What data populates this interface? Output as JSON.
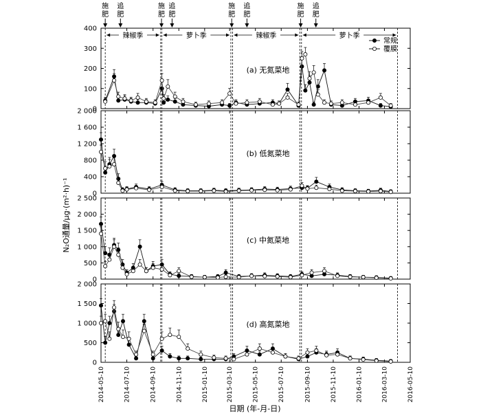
{
  "figure": {
    "ylabel": "N₂O通量/μg·(m²·h)⁻¹",
    "xlabel": "日期 (年-月-日)",
    "legend": [
      "常规",
      "覆膜"
    ],
    "x_ticks": [
      "2014-05-10",
      "2014-07-10",
      "2014-09-10",
      "2014-11-10",
      "2015-01-10",
      "2015-03-10",
      "2015-05-10",
      "2015-07-10",
      "2015-09-10",
      "2015-11-10",
      "2016-01-10",
      "2016-03-10",
      "2016-05-10"
    ],
    "events": [
      {
        "label": [
          "施",
          "肥"
        ],
        "date": "2014-05-20"
      },
      {
        "label": [
          "追",
          "肥"
        ],
        "date": "2014-06-25"
      },
      {
        "label": [
          "施",
          "肥"
        ],
        "date": "2014-09-30"
      },
      {
        "label": [
          "追",
          "肥"
        ],
        "date": "2014-10-25"
      },
      {
        "label": [
          "施",
          "肥"
        ],
        "date": "2015-03-15"
      },
      {
        "label": [
          "追",
          "肥"
        ],
        "date": "2015-04-20"
      },
      {
        "label": [
          "施",
          "肥"
        ],
        "date": "2015-08-25"
      },
      {
        "label": [
          "追",
          "肥"
        ],
        "date": "2015-09-30"
      }
    ],
    "seasons": [
      {
        "label": "辣椒季",
        "start": "2014-05-20",
        "end": "2014-09-28"
      },
      {
        "label": "萝卜季",
        "start": "2014-10-01",
        "end": "2015-03-13"
      },
      {
        "label": "辣椒季",
        "start": "2015-03-17",
        "end": "2015-08-23"
      },
      {
        "label": "萝卜季",
        "start": "2015-08-27",
        "end": "2016-04-10"
      }
    ],
    "dashed_lines": [
      "2014-05-20",
      "2014-09-28",
      "2014-10-01",
      "2015-03-13",
      "2015-03-17",
      "2015-08-23",
      "2015-08-27",
      "2016-04-10"
    ]
  },
  "chart_data": [
    {
      "type": "line",
      "title": "(a) 无氮菜地",
      "ylim": [
        0,
        400
      ],
      "yticks": [
        0,
        100,
        200,
        300,
        400
      ],
      "ytick_labels": [
        "0",
        "100",
        "200",
        "300",
        "400"
      ],
      "series": [
        {
          "name": "常规",
          "x": [
            "2014-05-20",
            "2014-06-10",
            "2014-06-20",
            "2014-07-05",
            "2014-07-20",
            "2014-08-05",
            "2014-08-25",
            "2014-09-15",
            "2014-10-01",
            "2014-10-05",
            "2014-10-15",
            "2014-11-01",
            "2014-11-20",
            "2014-12-20",
            "2015-01-20",
            "2015-02-20",
            "2015-03-10",
            "2015-03-25",
            "2015-04-20",
            "2015-05-20",
            "2015-06-20",
            "2015-07-05",
            "2015-07-25",
            "2015-08-20",
            "2015-08-28",
            "2015-09-05",
            "2015-09-15",
            "2015-09-25",
            "2015-10-05",
            "2015-10-20",
            "2015-11-05",
            "2015-12-01",
            "2016-01-01",
            "2016-02-01",
            "2016-03-01",
            "2016-03-25"
          ],
          "y": [
            40,
            160,
            40,
            45,
            35,
            30,
            30,
            25,
            100,
            30,
            45,
            35,
            20,
            15,
            12,
            20,
            15,
            30,
            20,
            25,
            30,
            25,
            95,
            15,
            210,
            90,
            130,
            20,
            110,
            190,
            20,
            15,
            35,
            40,
            15,
            10
          ]
        },
        {
          "name": "覆膜",
          "x": [
            "2014-05-20",
            "2014-06-10",
            "2014-06-20",
            "2014-07-05",
            "2014-07-20",
            "2014-08-05",
            "2014-08-25",
            "2014-09-15",
            "2014-10-01",
            "2014-10-05",
            "2014-10-15",
            "2014-11-01",
            "2014-11-20",
            "2014-12-20",
            "2015-01-20",
            "2015-02-20",
            "2015-03-10",
            "2015-03-25",
            "2015-04-20",
            "2015-05-20",
            "2015-06-20",
            "2015-07-05",
            "2015-07-25",
            "2015-08-20",
            "2015-08-28",
            "2015-09-05",
            "2015-09-15",
            "2015-09-25",
            "2015-10-05",
            "2015-10-20",
            "2015-11-05",
            "2015-12-01",
            "2016-01-01",
            "2016-02-01",
            "2016-03-01",
            "2016-03-25"
          ],
          "y": [
            35,
            140,
            60,
            50,
            40,
            55,
            35,
            30,
            140,
            50,
            110,
            60,
            35,
            20,
            25,
            30,
            75,
            25,
            30,
            35,
            20,
            25,
            55,
            20,
            250,
            270,
            150,
            180,
            70,
            30,
            25,
            30,
            20,
            30,
            55,
            15
          ]
        }
      ]
    },
    {
      "type": "line",
      "title": "(b) 低氮菜地",
      "ylim": [
        0,
        2000
      ],
      "yticks": [
        0,
        400,
        800,
        1200,
        1600,
        2000
      ],
      "ytick_labels": [
        "0",
        "400",
        "800",
        "1 200",
        "1 600",
        "2 000"
      ],
      "series": [
        {
          "name": "常规",
          "x": [
            "2014-05-10",
            "2014-05-20",
            "2014-05-30",
            "2014-06-10",
            "2014-06-20",
            "2014-06-30",
            "2014-07-10",
            "2014-08-01",
            "2014-09-01",
            "2014-10-01",
            "2014-11-01",
            "2014-12-01",
            "2015-01-01",
            "2015-02-01",
            "2015-03-01",
            "2015-04-01",
            "2015-05-01",
            "2015-06-01",
            "2015-07-01",
            "2015-08-01",
            "2015-08-28",
            "2015-09-10",
            "2015-10-01",
            "2015-11-01",
            "2015-12-01",
            "2016-01-01",
            "2016-02-01",
            "2016-03-01",
            "2016-03-25"
          ],
          "y": [
            1300,
            500,
            700,
            900,
            350,
            80,
            100,
            150,
            100,
            200,
            80,
            60,
            60,
            70,
            60,
            70,
            80,
            100,
            90,
            110,
            130,
            120,
            280,
            150,
            80,
            60,
            50,
            70,
            40
          ]
        },
        {
          "name": "覆膜",
          "x": [
            "2014-05-10",
            "2014-05-20",
            "2014-05-30",
            "2014-06-10",
            "2014-06-20",
            "2014-06-30",
            "2014-07-10",
            "2014-08-01",
            "2014-09-01",
            "2014-10-01",
            "2014-11-01",
            "2014-12-01",
            "2015-01-01",
            "2015-02-01",
            "2015-03-01",
            "2015-04-01",
            "2015-05-01",
            "2015-06-01",
            "2015-07-01",
            "2015-08-01",
            "2015-08-28",
            "2015-09-10",
            "2015-10-01",
            "2015-11-01",
            "2015-12-01",
            "2016-01-01",
            "2016-02-01",
            "2016-03-01",
            "2016-03-25"
          ],
          "y": [
            1000,
            600,
            650,
            700,
            250,
            60,
            90,
            120,
            80,
            150,
            60,
            50,
            50,
            60,
            40,
            60,
            70,
            80,
            70,
            90,
            180,
            110,
            130,
            100,
            60,
            50,
            40,
            50,
            30
          ]
        }
      ]
    },
    {
      "type": "line",
      "title": "(c) 中氮菜地",
      "ylim": [
        0,
        2500
      ],
      "yticks": [
        0,
        500,
        1000,
        1500,
        2000,
        2500
      ],
      "ytick_labels": [
        "0",
        "500",
        "1 000",
        "1 500",
        "2 000",
        "2 500"
      ],
      "series": [
        {
          "name": "常规",
          "x": [
            "2014-05-10",
            "2014-05-20",
            "2014-05-30",
            "2014-06-10",
            "2014-06-20",
            "2014-06-30",
            "2014-07-10",
            "2014-07-25",
            "2014-08-10",
            "2014-08-25",
            "2014-09-10",
            "2014-10-01",
            "2014-10-20",
            "2014-11-10",
            "2014-12-10",
            "2015-01-10",
            "2015-02-10",
            "2015-03-01",
            "2015-04-01",
            "2015-05-01",
            "2015-06-01",
            "2015-07-01",
            "2015-08-01",
            "2015-08-28",
            "2015-09-20",
            "2015-10-20",
            "2015-11-20",
            "2015-12-20",
            "2016-01-20",
            "2016-02-20",
            "2016-03-25"
          ],
          "y": [
            1700,
            800,
            750,
            1050,
            900,
            450,
            200,
            350,
            1000,
            250,
            400,
            450,
            150,
            100,
            80,
            60,
            80,
            200,
            80,
            100,
            120,
            100,
            80,
            150,
            100,
            150,
            120,
            80,
            60,
            50,
            30
          ]
        },
        {
          "name": "覆膜",
          "x": [
            "2014-05-10",
            "2014-05-20",
            "2014-05-30",
            "2014-06-10",
            "2014-06-20",
            "2014-06-30",
            "2014-07-10",
            "2014-07-25",
            "2014-08-10",
            "2014-08-25",
            "2014-09-10",
            "2014-10-01",
            "2014-10-20",
            "2014-11-10",
            "2014-12-10",
            "2015-01-10",
            "2015-02-10",
            "2015-03-01",
            "2015-04-01",
            "2015-05-01",
            "2015-06-01",
            "2015-07-01",
            "2015-08-01",
            "2015-08-28",
            "2015-09-20",
            "2015-10-20",
            "2015-11-20",
            "2015-12-20",
            "2016-01-20",
            "2016-02-20",
            "2016-03-25"
          ],
          "y": [
            1400,
            400,
            600,
            1000,
            750,
            350,
            150,
            250,
            450,
            250,
            350,
            300,
            120,
            250,
            70,
            60,
            50,
            70,
            60,
            100,
            90,
            80,
            60,
            120,
            200,
            250,
            100,
            70,
            60,
            40,
            20
          ]
        }
      ]
    },
    {
      "type": "line",
      "title": "(d) 高氮菜地",
      "ylim": [
        0,
        2000
      ],
      "yticks": [
        0,
        500,
        1000,
        1500,
        2000
      ],
      "ytick_labels": [
        "0",
        "500",
        "1 000",
        "1 500",
        "2 000"
      ],
      "series": [
        {
          "name": "常规",
          "x": [
            "2014-05-10",
            "2014-05-20",
            "2014-05-30",
            "2014-06-10",
            "2014-06-20",
            "2014-07-01",
            "2014-07-15",
            "2014-08-01",
            "2014-08-20",
            "2014-09-10",
            "2014-10-01",
            "2014-10-20",
            "2014-11-10",
            "2014-12-01",
            "2015-01-01",
            "2015-02-01",
            "2015-03-01",
            "2015-03-20",
            "2015-04-20",
            "2015-05-20",
            "2015-06-20",
            "2015-07-20",
            "2015-08-20",
            "2015-09-10",
            "2015-10-01",
            "2015-10-25",
            "2015-11-20",
            "2015-12-20",
            "2016-01-20",
            "2016-02-20",
            "2016-03-25"
          ],
          "y": [
            1450,
            500,
            1000,
            1300,
            700,
            1050,
            450,
            100,
            1050,
            100,
            300,
            150,
            100,
            100,
            80,
            80,
            80,
            150,
            300,
            200,
            350,
            150,
            80,
            150,
            250,
            200,
            250,
            100,
            80,
            50,
            30
          ]
        },
        {
          "name": "覆膜",
          "x": [
            "2014-05-10",
            "2014-05-20",
            "2014-05-30",
            "2014-06-10",
            "2014-06-20",
            "2014-07-01",
            "2014-07-15",
            "2014-08-01",
            "2014-08-20",
            "2014-09-10",
            "2014-10-01",
            "2014-10-20",
            "2014-11-10",
            "2014-12-01",
            "2015-01-01",
            "2015-02-01",
            "2015-03-01",
            "2015-03-20",
            "2015-04-20",
            "2015-05-20",
            "2015-06-20",
            "2015-07-20",
            "2015-08-20",
            "2015-09-10",
            "2015-10-01",
            "2015-10-25",
            "2015-11-20",
            "2015-12-20",
            "2016-01-20",
            "2016-02-20",
            "2016-03-25"
          ],
          "y": [
            1000,
            1050,
            600,
            1400,
            850,
            650,
            600,
            200,
            800,
            200,
            600,
            700,
            650,
            350,
            200,
            120,
            100,
            80,
            200,
            350,
            250,
            150,
            100,
            250,
            300,
            180,
            200,
            100,
            70,
            40,
            20
          ]
        }
      ]
    }
  ]
}
